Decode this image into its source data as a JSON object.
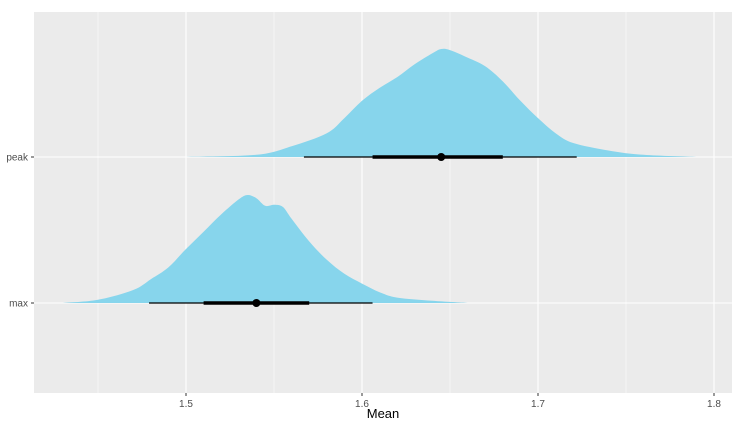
{
  "chart_data": {
    "type": "halfeye",
    "title": "",
    "xlabel": "Mean",
    "ylabel": "",
    "xlim": [
      1.42,
      1.81
    ],
    "x_ticks": [
      "1.5",
      "1.6",
      "1.7",
      "1.8"
    ],
    "y_categories": [
      "peak",
      "max"
    ],
    "grid": true,
    "colors": {
      "panel": "#ebebeb",
      "grid": "#ffffff",
      "fill": "#87d5ec",
      "interval": "#000000"
    },
    "series": [
      {
        "name": "peak",
        "density": {
          "x": [
            1.5,
            1.54,
            1.56,
            1.58,
            1.59,
            1.6,
            1.61,
            1.62,
            1.63,
            1.64,
            1.645,
            1.65,
            1.66,
            1.67,
            1.68,
            1.69,
            1.7,
            1.71,
            1.72,
            1.74,
            1.76,
            1.79
          ],
          "y": [
            0.0,
            0.02,
            0.1,
            0.22,
            0.36,
            0.52,
            0.64,
            0.74,
            0.86,
            0.96,
            1.0,
            0.99,
            0.92,
            0.84,
            0.7,
            0.52,
            0.36,
            0.22,
            0.13,
            0.06,
            0.02,
            0.0
          ]
        },
        "point": 1.645,
        "interval_66": [
          1.606,
          1.68
        ],
        "interval_95": [
          1.567,
          1.722
        ]
      },
      {
        "name": "max",
        "density": {
          "x": [
            1.43,
            1.45,
            1.47,
            1.48,
            1.49,
            1.5,
            1.51,
            1.52,
            1.53,
            1.535,
            1.54,
            1.545,
            1.55,
            1.555,
            1.56,
            1.57,
            1.58,
            1.59,
            1.6,
            1.61,
            1.62,
            1.64,
            1.66
          ],
          "y": [
            0.0,
            0.03,
            0.12,
            0.22,
            0.33,
            0.5,
            0.66,
            0.82,
            0.96,
            1.0,
            0.97,
            0.9,
            0.91,
            0.89,
            0.78,
            0.57,
            0.4,
            0.27,
            0.18,
            0.1,
            0.05,
            0.02,
            0.0
          ]
        },
        "point": 1.54,
        "interval_66": [
          1.51,
          1.57
        ],
        "interval_95": [
          1.479,
          1.606
        ]
      }
    ]
  }
}
